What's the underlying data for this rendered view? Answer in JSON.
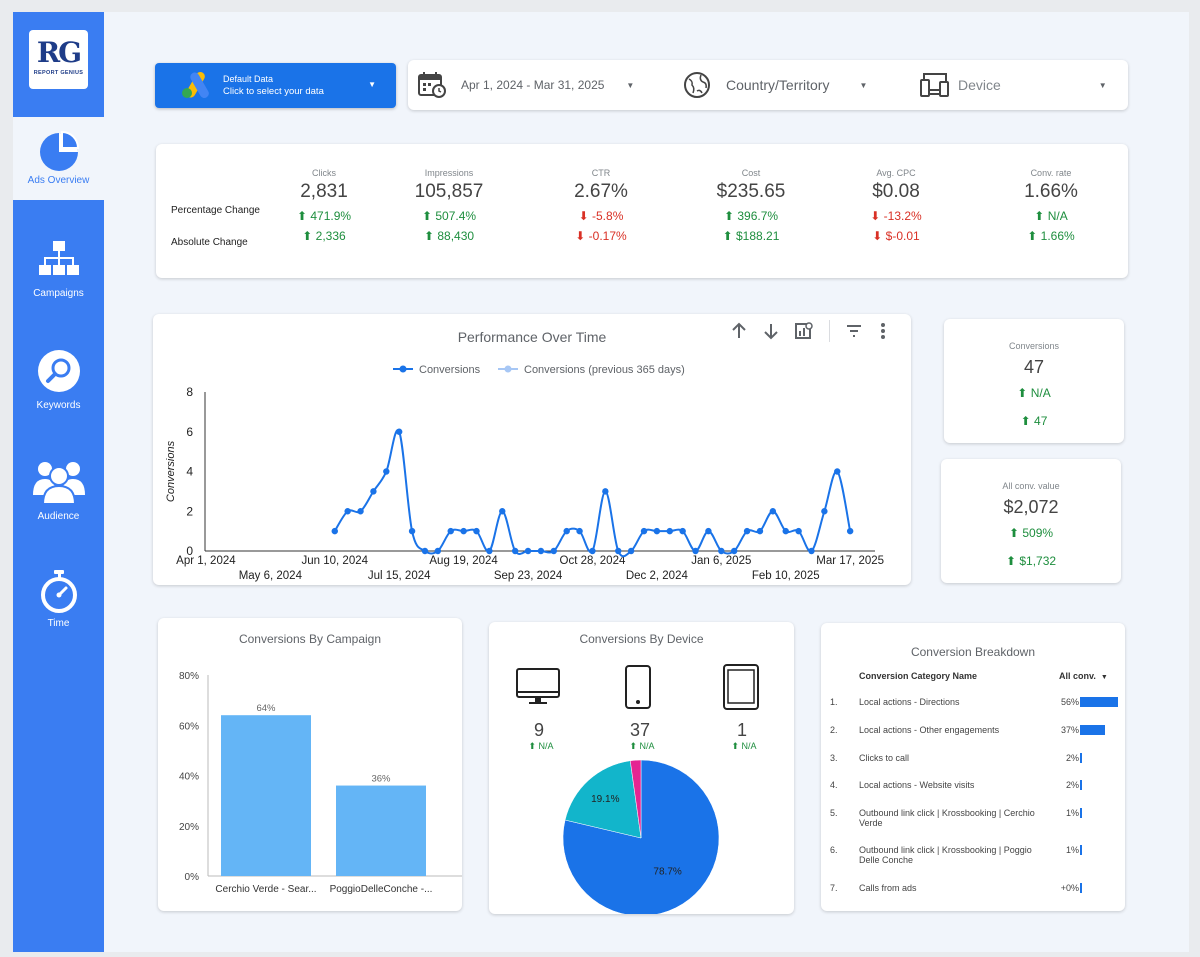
{
  "sidebar": {
    "logo": {
      "mark": "RG",
      "text": "REPORT GENIUS"
    },
    "items": [
      {
        "label": "Ads Overview",
        "icon": "pie-chart-icon",
        "active": true
      },
      {
        "label": "Campaigns",
        "icon": "sitemap-icon",
        "active": false
      },
      {
        "label": "Keywords",
        "icon": "magnifier-icon",
        "active": false
      },
      {
        "label": "Audience",
        "icon": "users-icon",
        "active": false
      },
      {
        "label": "Time",
        "icon": "stopwatch-icon",
        "active": false
      }
    ]
  },
  "datasource": {
    "title": "Default Data",
    "subtitle": "Click to select your data",
    "icon": "google-ads-icon"
  },
  "filters": {
    "date_range": "Apr 1, 2024 - Mar 31, 2025",
    "country": "Country/Territory",
    "device": "Device"
  },
  "kpi": {
    "row_labels": [
      "Percentage Change",
      "Absolute Change"
    ],
    "metrics": [
      {
        "label": "Clicks",
        "value": "2,831",
        "pct": "471.9%",
        "pct_dir": "up",
        "abs": "2,336",
        "abs_dir": "up"
      },
      {
        "label": "Impressions",
        "value": "105,857",
        "pct": "507.4%",
        "pct_dir": "up",
        "abs": "88,430",
        "abs_dir": "up"
      },
      {
        "label": "CTR",
        "value": "2.67%",
        "pct": "-5.8%",
        "pct_dir": "down",
        "abs": "-0.17%",
        "abs_dir": "down"
      },
      {
        "label": "Cost",
        "value": "$235.65",
        "pct": "396.7%",
        "pct_dir": "up",
        "abs": "$188.21",
        "abs_dir": "up"
      },
      {
        "label": "Avg. CPC",
        "value": "$0.08",
        "pct": "-13.2%",
        "pct_dir": "down",
        "abs": "$-0.01",
        "abs_dir": "down"
      },
      {
        "label": "Conv. rate",
        "value": "1.66%",
        "pct": "N/A",
        "pct_dir": "up",
        "abs": "1.66%",
        "abs_dir": "up"
      }
    ]
  },
  "scorecards": [
    {
      "label": "Conversions",
      "value": "47",
      "pct": "N/A",
      "abs": "47"
    },
    {
      "label": "All conv. value",
      "value": "$2,072",
      "pct": "509%",
      "abs": "$1,732"
    }
  ],
  "device": {
    "title": "Conversions By Device",
    "items": [
      {
        "icon": "monitor-icon",
        "value": "9",
        "change": "N/A"
      },
      {
        "icon": "smartphone-icon",
        "value": "37",
        "change": "N/A"
      },
      {
        "icon": "tablet-icon",
        "value": "1",
        "change": "N/A"
      }
    ]
  },
  "breakdown": {
    "title": "Conversion Breakdown",
    "col_name": "Conversion Category Name",
    "col_value": "All conv.",
    "rows": [
      {
        "n": "1.",
        "name": "Local actions - Directions",
        "pct": "56%",
        "share": 0.56
      },
      {
        "n": "2.",
        "name": "Local actions - Other engagements",
        "pct": "37%",
        "share": 0.37
      },
      {
        "n": "3.",
        "name": "Clicks to call",
        "pct": "2%",
        "share": 0.02
      },
      {
        "n": "4.",
        "name": "Local actions - Website visits",
        "pct": "2%",
        "share": 0.02
      },
      {
        "n": "5.",
        "name": "Outbound link click | Krossbooking | Cerchio Verde",
        "pct": "1%",
        "share": 0.01
      },
      {
        "n": "6.",
        "name": "Outbound link click | Krossbooking | Poggio Delle Conche",
        "pct": "1%",
        "share": 0.01
      },
      {
        "n": "7.",
        "name": "Calls from ads",
        "pct": "+0%",
        "share": 0.0
      }
    ]
  },
  "chart_data": [
    {
      "type": "line",
      "title": "Performance Over Time",
      "ylabel": "Conversions",
      "ylim": [
        0,
        8
      ],
      "yticks": [
        0,
        2,
        4,
        6,
        8
      ],
      "x_start": "Apr 1, 2024",
      "x_end": "Mar 31, 2025",
      "xticks_row1": [
        "Apr 1, 2024",
        "Jun 10, 2024",
        "Aug 19, 2024",
        "Oct 28, 2024",
        "Jan 6, 2025",
        "Mar 17, 2025"
      ],
      "xticks_row2": [
        "May 6, 2024",
        "Jul 15, 2024",
        "Sep 23, 2024",
        "Dec 2, 2024",
        "Feb 10, 2025"
      ],
      "legend": [
        "Conversions",
        "Conversions (previous 365 days)"
      ],
      "legend_colors": [
        "#1a73e8",
        "#a7c7f5"
      ],
      "series": [
        {
          "name": "Conversions",
          "color": "#1a73e8",
          "points": [
            [
              "2024-06-10",
              1
            ],
            [
              "2024-06-17",
              2
            ],
            [
              "2024-06-24",
              2
            ],
            [
              "2024-07-01",
              3
            ],
            [
              "2024-07-08",
              4
            ],
            [
              "2024-07-15",
              6
            ],
            [
              "2024-07-22",
              1
            ],
            [
              "2024-07-29",
              0
            ],
            [
              "2024-08-05",
              0
            ],
            [
              "2024-08-12",
              1
            ],
            [
              "2024-08-19",
              1
            ],
            [
              "2024-08-26",
              1
            ],
            [
              "2024-09-02",
              0
            ],
            [
              "2024-09-09",
              2
            ],
            [
              "2024-09-16",
              0
            ],
            [
              "2024-09-23",
              0
            ],
            [
              "2024-09-30",
              0
            ],
            [
              "2024-10-07",
              0
            ],
            [
              "2024-10-14",
              1
            ],
            [
              "2024-10-21",
              1
            ],
            [
              "2024-10-28",
              0
            ],
            [
              "2024-11-04",
              3
            ],
            [
              "2024-11-11",
              0
            ],
            [
              "2024-11-18",
              0
            ],
            [
              "2024-11-25",
              1
            ],
            [
              "2024-12-02",
              1
            ],
            [
              "2024-12-09",
              1
            ],
            [
              "2024-12-16",
              1
            ],
            [
              "2024-12-23",
              0
            ],
            [
              "2024-12-30",
              1
            ],
            [
              "2025-01-06",
              0
            ],
            [
              "2025-01-13",
              0
            ],
            [
              "2025-01-20",
              1
            ],
            [
              "2025-01-27",
              1
            ],
            [
              "2025-02-03",
              2
            ],
            [
              "2025-02-10",
              1
            ],
            [
              "2025-02-17",
              1
            ],
            [
              "2025-02-24",
              0
            ],
            [
              "2025-03-03",
              2
            ],
            [
              "2025-03-10",
              4
            ],
            [
              "2025-03-17",
              1
            ]
          ]
        }
      ]
    },
    {
      "type": "bar",
      "title": "Conversions By Campaign",
      "categories": [
        "Cerchio Verde - Sear...",
        "PoggioDelleConche -..."
      ],
      "values": [
        64,
        36
      ],
      "labels": [
        "64%",
        "36%"
      ],
      "ylim": [
        0,
        80
      ],
      "yticks": [
        "0%",
        "20%",
        "40%",
        "60%",
        "80%"
      ],
      "color": "#64b5f6"
    },
    {
      "type": "pie",
      "slices": [
        {
          "value": 78.7,
          "label": "78.7%",
          "color": "#1a73e8"
        },
        {
          "value": 19.1,
          "label": "19.1%",
          "color": "#12b5cb"
        },
        {
          "value": 2.2,
          "label": "",
          "color": "#e52592"
        }
      ]
    }
  ]
}
